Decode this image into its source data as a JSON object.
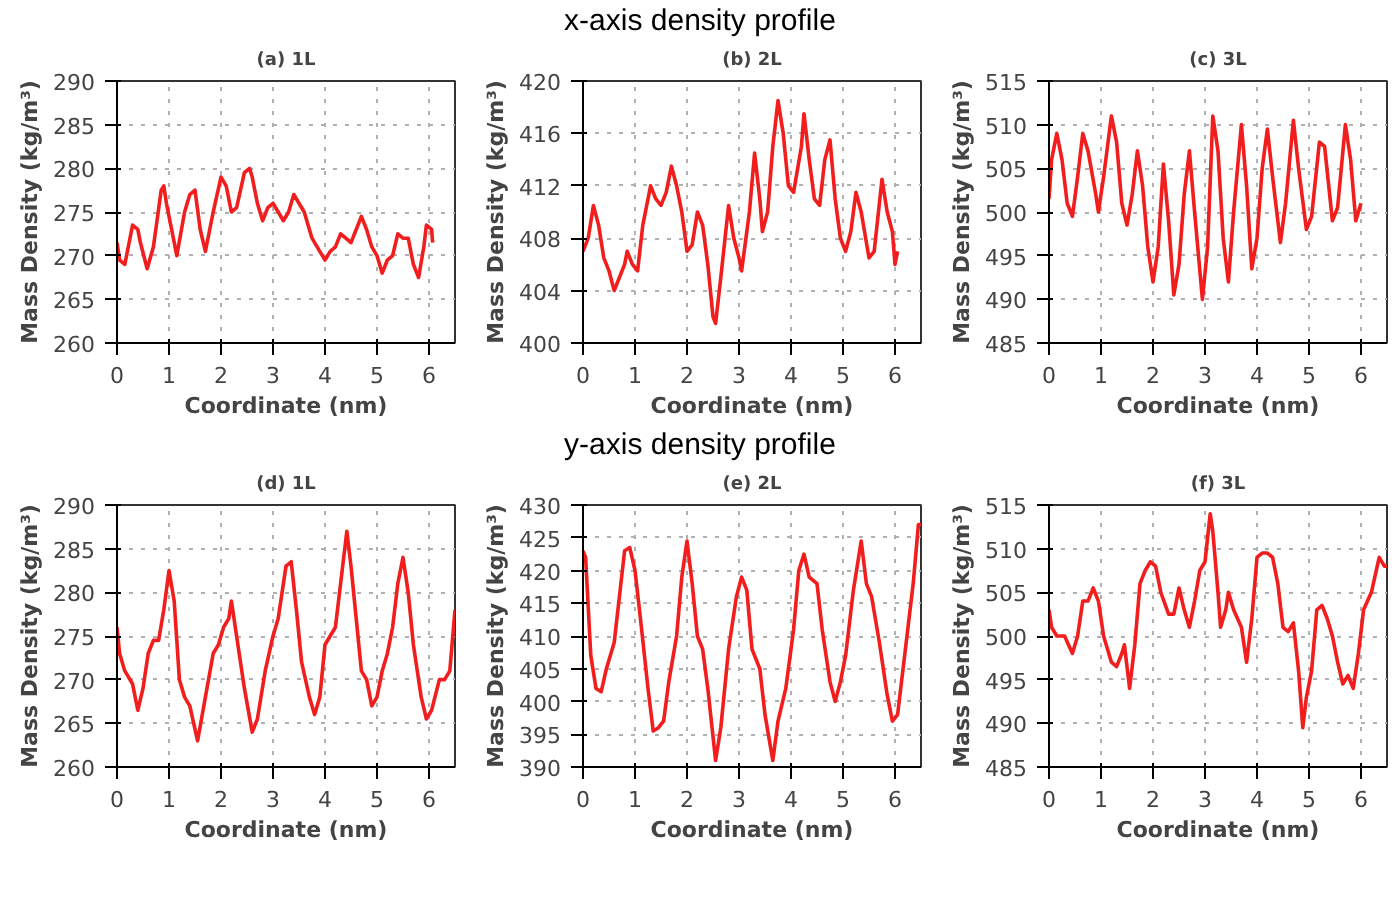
{
  "chart_data": [
    {
      "type": "line",
      "title": "(a) 1L",
      "annotations": [
        "x-axis density profile"
      ],
      "xlabel": "Coordinate (nm)",
      "ylabel": "Mass Density (kg/m³)",
      "xlim": [
        0,
        6.5
      ],
      "xticks": [
        0,
        1,
        2,
        3,
        4,
        5,
        6
      ],
      "ylim": [
        260,
        290
      ],
      "yticks": [
        260,
        265,
        270,
        275,
        280,
        285,
        290
      ],
      "grid": true,
      "line_style": "solid",
      "series": [
        {
          "color": "#f21d1d",
          "x": [
            0,
            0.05,
            0.15,
            0.3,
            0.4,
            0.45,
            0.58,
            0.7,
            0.85,
            0.9,
            0.95,
            1.05,
            1.15,
            1.3,
            1.4,
            1.5,
            1.6,
            1.7,
            1.85,
            2.0,
            2.1,
            2.2,
            2.3,
            2.45,
            2.55,
            2.6,
            2.7,
            2.8,
            2.9,
            3.0,
            3.1,
            3.2,
            3.3,
            3.4,
            3.5,
            3.6,
            3.75,
            3.9,
            4.0,
            4.1,
            4.2,
            4.3,
            4.4,
            4.5,
            4.6,
            4.7,
            4.8,
            4.9,
            5.0,
            5.1,
            5.2,
            5.3,
            5.4,
            5.5,
            5.6,
            5.7,
            5.8,
            5.9,
            5.95,
            6.05,
            6.07
          ],
          "values": [
            271.5,
            269.5,
            269,
            273.5,
            273,
            271.5,
            268.5,
            271,
            277.5,
            278,
            276,
            273,
            270,
            275,
            277,
            277.5,
            273,
            270.5,
            275,
            279,
            278,
            275,
            275.5,
            279.5,
            280,
            279,
            276,
            274,
            275.5,
            276,
            275,
            274,
            275,
            277,
            276,
            275,
            272,
            270.5,
            269.5,
            270.5,
            271,
            272.5,
            272,
            271.5,
            273,
            274.5,
            273,
            271,
            270,
            268,
            269.5,
            270,
            272.5,
            272,
            272,
            269,
            267.5,
            271,
            273.5,
            273,
            271.5
          ]
        }
      ]
    },
    {
      "type": "line",
      "title": "(b) 2L",
      "xlabel": "Coordinate (nm)",
      "ylabel": "Mass Density (kg/m³)",
      "xlim": [
        0,
        6.5
      ],
      "xticks": [
        0,
        1,
        2,
        3,
        4,
        5,
        6
      ],
      "ylim": [
        400,
        420
      ],
      "yticks": [
        400,
        404,
        408,
        412,
        416,
        420
      ],
      "grid": true,
      "line_style": "solid",
      "series": [
        {
          "color": "#f21d1d",
          "x": [
            0,
            0.1,
            0.2,
            0.3,
            0.4,
            0.5,
            0.6,
            0.7,
            0.8,
            0.85,
            0.95,
            1.05,
            1.15,
            1.3,
            1.4,
            1.5,
            1.6,
            1.7,
            1.8,
            1.9,
            2.0,
            2.1,
            2.2,
            2.3,
            2.4,
            2.5,
            2.55,
            2.65,
            2.8,
            2.9,
            3.0,
            3.05,
            3.2,
            3.3,
            3.4,
            3.45,
            3.55,
            3.65,
            3.75,
            3.85,
            3.95,
            4.05,
            4.2,
            4.25,
            4.35,
            4.45,
            4.55,
            4.65,
            4.75,
            4.85,
            4.95,
            5.05,
            5.15,
            5.25,
            5.35,
            5.5,
            5.6,
            5.75,
            5.85,
            5.95,
            6.0,
            6.05
          ],
          "values": [
            407,
            408,
            410.5,
            409,
            406.5,
            405.5,
            404,
            405,
            406,
            407,
            406,
            405.5,
            409,
            412,
            411,
            410.5,
            411.5,
            413.5,
            412,
            410,
            407,
            407.5,
            410,
            409,
            406,
            402,
            401.5,
            405,
            410.5,
            408,
            406.5,
            405.5,
            410,
            414.5,
            411,
            408.5,
            410,
            415,
            418.5,
            416,
            412,
            411.5,
            415,
            417.5,
            414,
            411,
            410.5,
            414,
            415.5,
            411,
            408,
            407,
            408.5,
            411.5,
            410,
            406.5,
            407,
            412.5,
            410,
            408.5,
            406,
            407
          ]
        }
      ]
    },
    {
      "type": "line",
      "title": "(c) 3L",
      "xlabel": "Coordinate (nm)",
      "ylabel": "Mass Density (kg/m³)",
      "xlim": [
        0,
        6.5
      ],
      "xticks": [
        0,
        1,
        2,
        3,
        4,
        5,
        6
      ],
      "ylim": [
        485,
        515
      ],
      "yticks": [
        485,
        490,
        495,
        500,
        505,
        510,
        515
      ],
      "grid": true,
      "line_style": "solid",
      "series": [
        {
          "color": "#f21d1d",
          "x": [
            0,
            0.05,
            0.15,
            0.25,
            0.35,
            0.45,
            0.55,
            0.65,
            0.75,
            0.9,
            0.95,
            1.05,
            1.2,
            1.3,
            1.4,
            1.5,
            1.6,
            1.7,
            1.8,
            1.9,
            2.0,
            2.1,
            2.2,
            2.3,
            2.4,
            2.5,
            2.6,
            2.7,
            2.8,
            2.95,
            3.05,
            3.15,
            3.25,
            3.35,
            3.45,
            3.55,
            3.7,
            3.8,
            3.9,
            4.0,
            4.1,
            4.2,
            4.3,
            4.45,
            4.55,
            4.7,
            4.8,
            4.95,
            5.05,
            5.2,
            5.3,
            5.45,
            5.55,
            5.7,
            5.8,
            5.9,
            6.0
          ],
          "values": [
            501.5,
            506,
            509,
            506,
            501,
            499.5,
            504,
            509,
            507,
            502,
            500,
            504,
            511,
            508,
            501,
            498.5,
            502,
            507,
            503,
            496,
            492,
            496,
            505.5,
            499,
            490.5,
            494,
            502,
            507,
            500,
            490,
            496,
            511,
            507,
            497,
            492,
            500,
            510,
            503,
            493.5,
            497,
            505,
            509.5,
            504,
            496.5,
            501,
            510.5,
            505,
            498,
            499.5,
            508,
            507.5,
            499,
            500.5,
            510,
            506,
            499,
            501
          ]
        }
      ]
    },
    {
      "type": "line",
      "title": "(d) 1L",
      "annotations": [
        "y-axis density profile"
      ],
      "xlabel": "Coordinate (nm)",
      "ylabel": "Mass Density (kg/m³)",
      "xlim": [
        0,
        6.5
      ],
      "xticks": [
        0,
        1,
        2,
        3,
        4,
        5,
        6
      ],
      "ylim": [
        260,
        290
      ],
      "yticks": [
        260,
        265,
        270,
        275,
        280,
        285,
        290
      ],
      "grid": true,
      "line_style": "solid",
      "series": [
        {
          "color": "#f21d1d",
          "x": [
            0,
            0.05,
            0.15,
            0.3,
            0.4,
            0.5,
            0.6,
            0.7,
            0.8,
            0.9,
            1.0,
            1.1,
            1.2,
            1.3,
            1.4,
            1.55,
            1.7,
            1.85,
            1.95,
            2.05,
            2.15,
            2.2,
            2.3,
            2.45,
            2.6,
            2.7,
            2.85,
            3.0,
            3.1,
            3.25,
            3.35,
            3.45,
            3.55,
            3.7,
            3.8,
            3.9,
            4.0,
            4.1,
            4.2,
            4.3,
            4.42,
            4.5,
            4.6,
            4.7,
            4.8,
            4.9,
            5.0,
            5.1,
            5.2,
            5.3,
            5.4,
            5.5,
            5.6,
            5.7,
            5.85,
            5.95,
            6.05,
            6.2,
            6.3,
            6.4,
            6.5
          ],
          "values": [
            276,
            273,
            271,
            269.5,
            266.5,
            269,
            273,
            274.5,
            274.5,
            278,
            282.5,
            279,
            270,
            268,
            267,
            263,
            268,
            273,
            274,
            276,
            277,
            279,
            275,
            269,
            264,
            265.5,
            271,
            275,
            277,
            283,
            283.5,
            278,
            272,
            268,
            266,
            268,
            274,
            275,
            276,
            281,
            287,
            283,
            277,
            271,
            270,
            267,
            268,
            271,
            273,
            276,
            281,
            284,
            280,
            274,
            268,
            265.5,
            266.5,
            270,
            270,
            271,
            278
          ]
        }
      ]
    },
    {
      "type": "line",
      "title": "(e) 2L",
      "xlabel": "Coordinate (nm)",
      "ylabel": "Mass Density (kg/m³)",
      "xlim": [
        0,
        6.5
      ],
      "xticks": [
        0,
        1,
        2,
        3,
        4,
        5,
        6
      ],
      "ylim": [
        390,
        430
      ],
      "yticks": [
        390,
        395,
        400,
        405,
        410,
        415,
        420,
        425,
        430
      ],
      "grid": true,
      "line_style": "solid",
      "series": [
        {
          "color": "#f21d1d",
          "x": [
            0,
            0.05,
            0.15,
            0.25,
            0.35,
            0.45,
            0.6,
            0.7,
            0.8,
            0.9,
            1.0,
            1.1,
            1.25,
            1.35,
            1.45,
            1.55,
            1.65,
            1.8,
            1.9,
            2.0,
            2.1,
            2.2,
            2.3,
            2.4,
            2.55,
            2.65,
            2.8,
            2.95,
            3.05,
            3.15,
            3.25,
            3.4,
            3.5,
            3.65,
            3.75,
            3.9,
            4.05,
            4.15,
            4.25,
            4.35,
            4.5,
            4.6,
            4.75,
            4.85,
            4.95,
            5.05,
            5.2,
            5.35,
            5.45,
            5.55,
            5.7,
            5.85,
            5.95,
            6.05,
            6.2,
            6.35,
            6.45,
            6.5
          ],
          "values": [
            423,
            422,
            407,
            402,
            401.5,
            405,
            409,
            416,
            423,
            423.5,
            420,
            413,
            402,
            395.5,
            396,
            397,
            403,
            410,
            419,
            424.5,
            418,
            410,
            408,
            402,
            391,
            396,
            408,
            416,
            419,
            417,
            408,
            405,
            398,
            391,
            397,
            402,
            411,
            420,
            422.5,
            419,
            418,
            411,
            403,
            400,
            403,
            407,
            417,
            424.5,
            418,
            416,
            409,
            401,
            397,
            398,
            408,
            418,
            427,
            427
          ]
        }
      ]
    },
    {
      "type": "line",
      "title": "(f) 3L",
      "xlabel": "Coordinate (nm)",
      "ylabel": "Mass Density (kg/m³)",
      "xlim": [
        0,
        6.5
      ],
      "xticks": [
        0,
        1,
        2,
        3,
        4,
        5,
        6
      ],
      "ylim": [
        485,
        515
      ],
      "yticks": [
        485,
        490,
        495,
        500,
        505,
        510,
        515
      ],
      "grid": true,
      "line_style": "solid",
      "series": [
        {
          "color": "#f21d1d",
          "x": [
            0,
            0.05,
            0.15,
            0.3,
            0.45,
            0.55,
            0.65,
            0.75,
            0.85,
            0.95,
            1.05,
            1.2,
            1.3,
            1.4,
            1.45,
            1.55,
            1.65,
            1.75,
            1.85,
            1.95,
            2.05,
            2.15,
            2.3,
            2.4,
            2.5,
            2.6,
            2.7,
            2.8,
            2.9,
            3.0,
            3.1,
            3.15,
            3.25,
            3.3,
            3.4,
            3.45,
            3.55,
            3.7,
            3.8,
            3.9,
            4.0,
            4.1,
            4.2,
            4.3,
            4.4,
            4.5,
            4.6,
            4.7,
            4.8,
            4.88,
            4.95,
            5.05,
            5.15,
            5.25,
            5.35,
            5.45,
            5.55,
            5.65,
            5.75,
            5.85,
            5.95,
            6.05,
            6.2,
            6.35,
            6.45,
            6.5
          ],
          "values": [
            503,
            501,
            500,
            500,
            498,
            500,
            504,
            504,
            505.5,
            504,
            500,
            497,
            496.5,
            498,
            499,
            494,
            499,
            506,
            507.5,
            508.5,
            508,
            505,
            502.5,
            502.5,
            505.5,
            503,
            501,
            504,
            507.5,
            508.5,
            514,
            512,
            505,
            501,
            503,
            505,
            503,
            501,
            497,
            502,
            509,
            509.5,
            509.5,
            509,
            506,
            501,
            500.5,
            501.5,
            496,
            489.5,
            493,
            496,
            503,
            503.5,
            502,
            500,
            497,
            494.5,
            495.5,
            494,
            498,
            503,
            505,
            509,
            508,
            508
          ]
        }
      ]
    }
  ]
}
